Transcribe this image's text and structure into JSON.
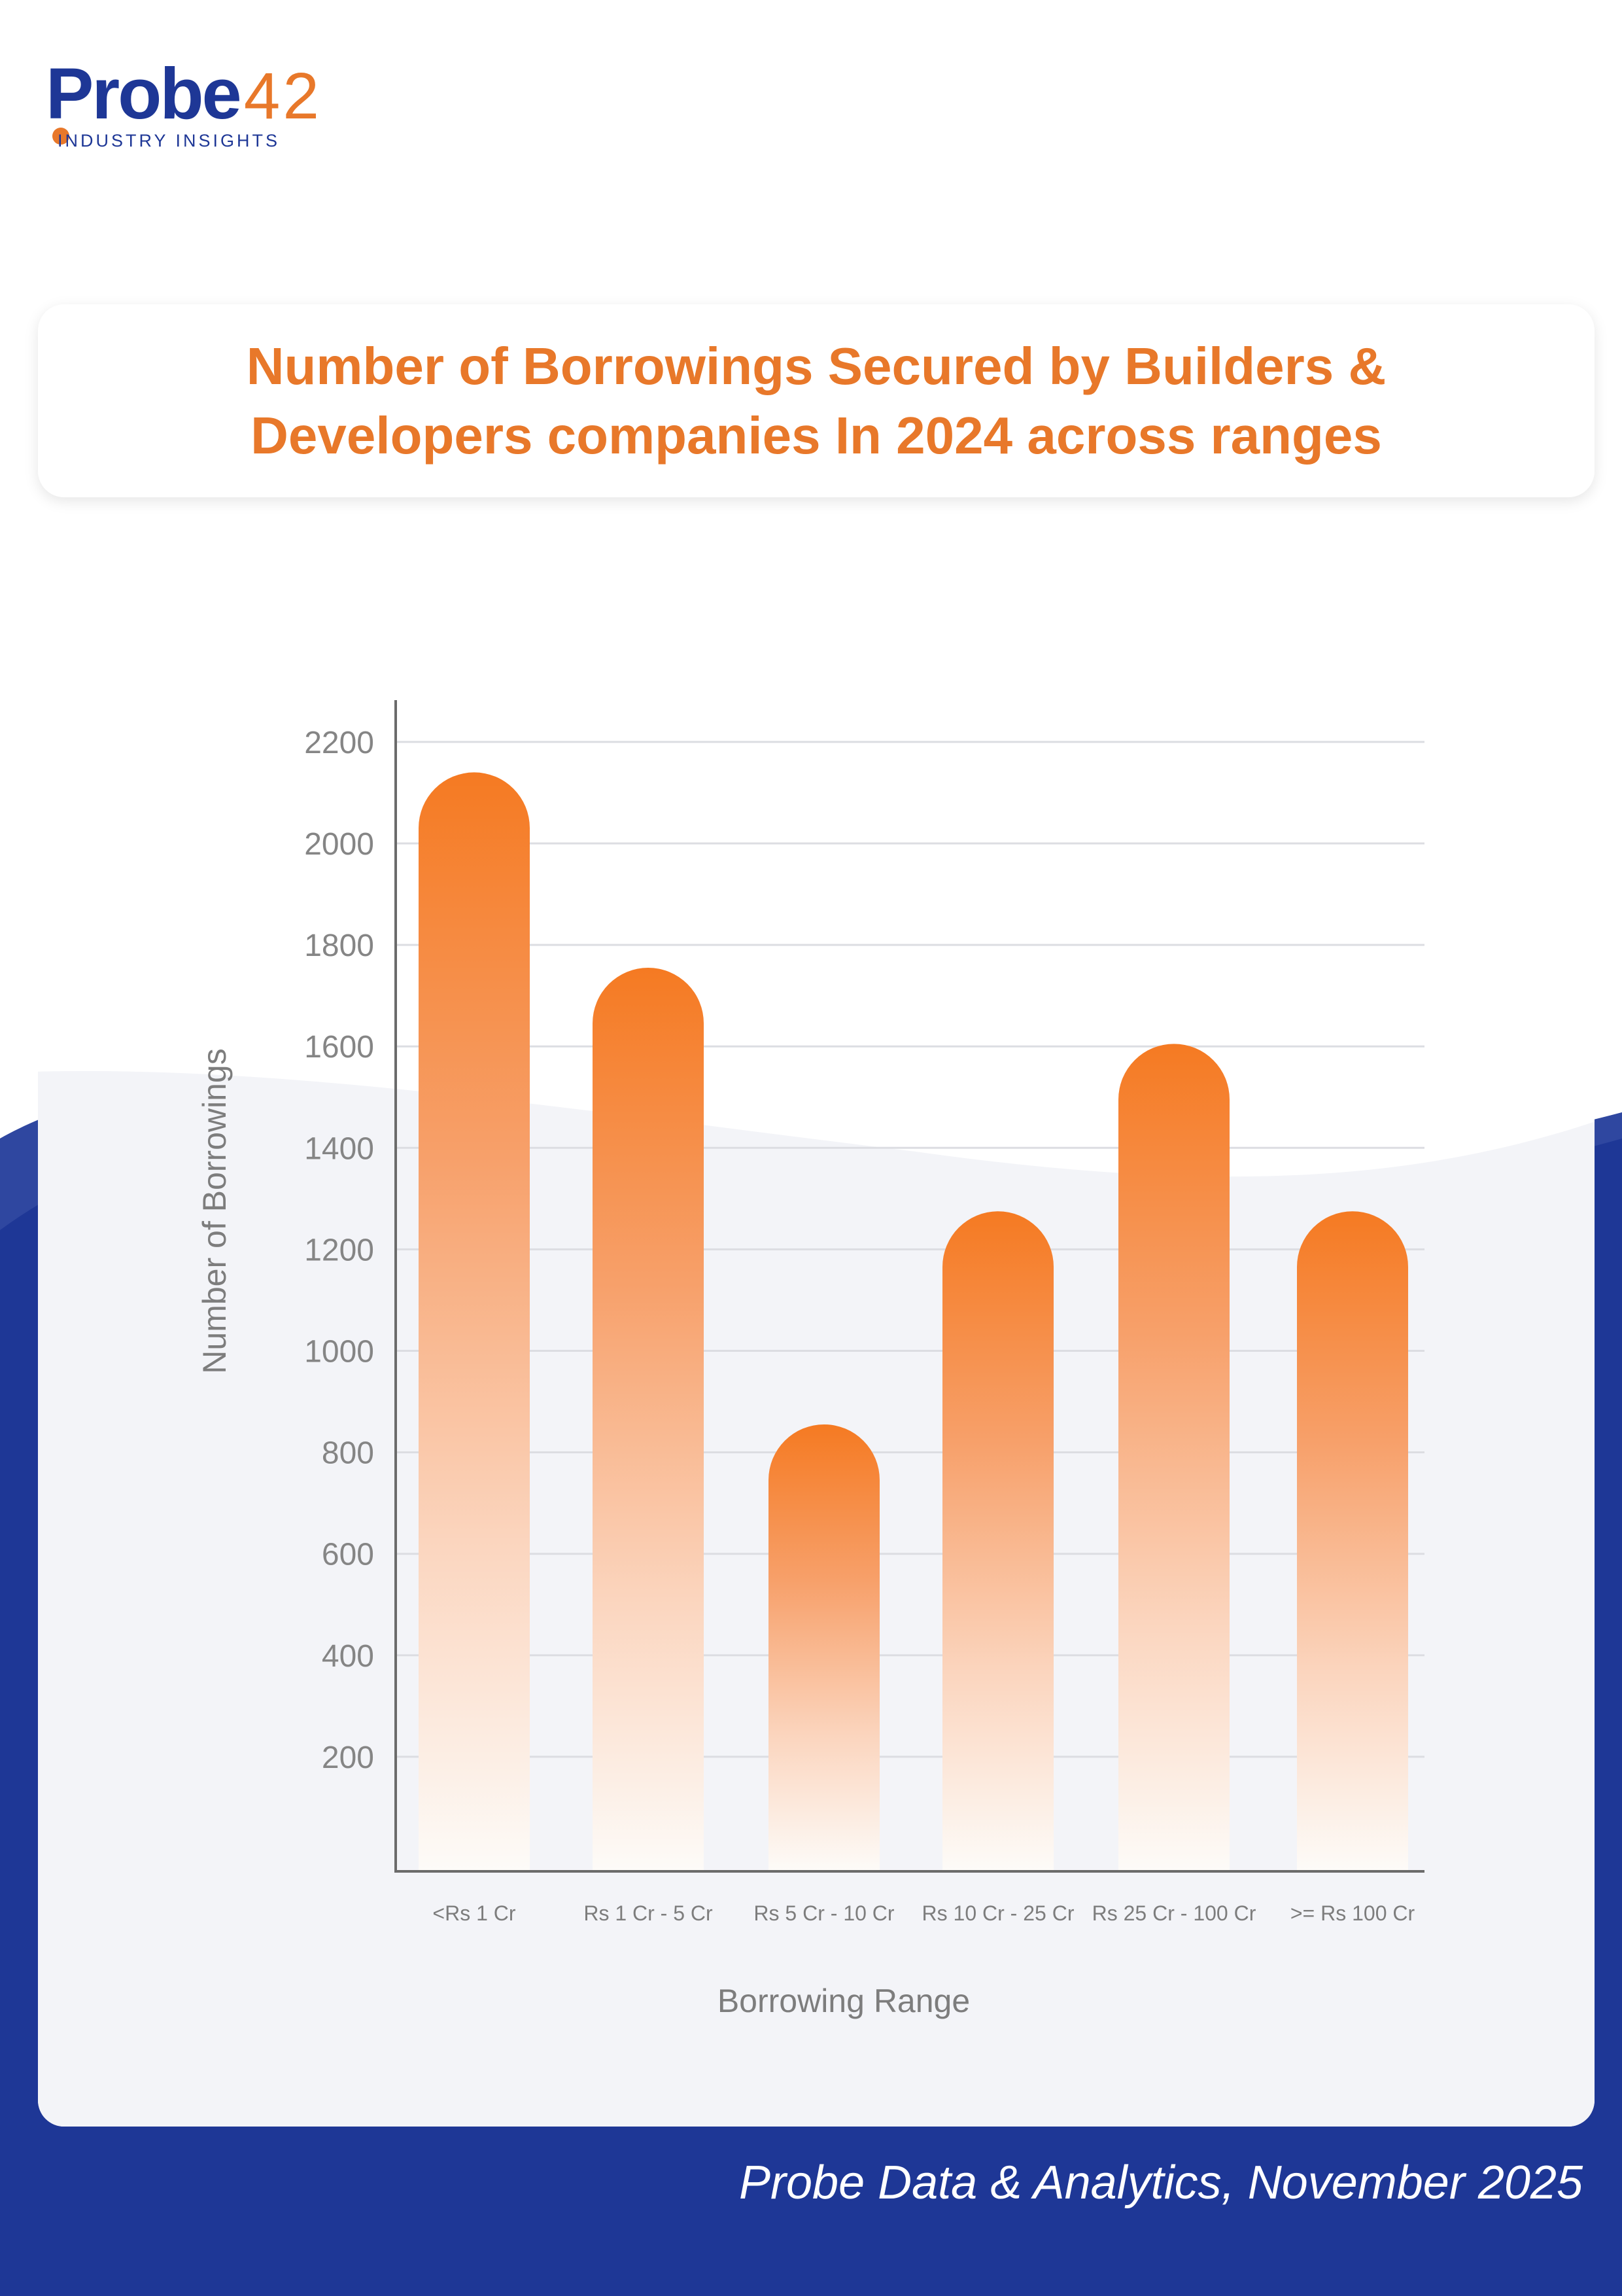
{
  "logo": {
    "brand": "Probe",
    "number": "42",
    "tagline": "INDUSTRY INSIGHTS"
  },
  "title": "Number of Borrowings Secured by Builders & Developers companies In 2024 across ranges",
  "footer": "Probe Data & Analytics, November 2025",
  "colors": {
    "accent": "#E8782A",
    "brand_blue": "#1E3796",
    "bar_top": "#F57A22",
    "bar_bottom": "#FFFFFF"
  },
  "chart_data": {
    "type": "bar",
    "title": "Number of Borrowings Secured by Builders & Developers companies In 2024 across ranges",
    "xlabel": "Borrowing Range",
    "ylabel": "Number of Borrowings",
    "categories": [
      "<Rs 1 Cr",
      "Rs 1 Cr - 5 Cr",
      "Rs 5 Cr - 10 Cr",
      "Rs 10 Cr - 25 Cr",
      "Rs 25 Cr - 100 Cr",
      ">= Rs 100 Cr"
    ],
    "values": [
      2140,
      1755,
      855,
      1275,
      1605,
      1275
    ],
    "yticks": [
      200,
      400,
      600,
      800,
      1000,
      1200,
      1400,
      1600,
      1800,
      2000,
      2200
    ],
    "ylim": [
      0,
      2250
    ],
    "grid": true,
    "legend": "none"
  }
}
